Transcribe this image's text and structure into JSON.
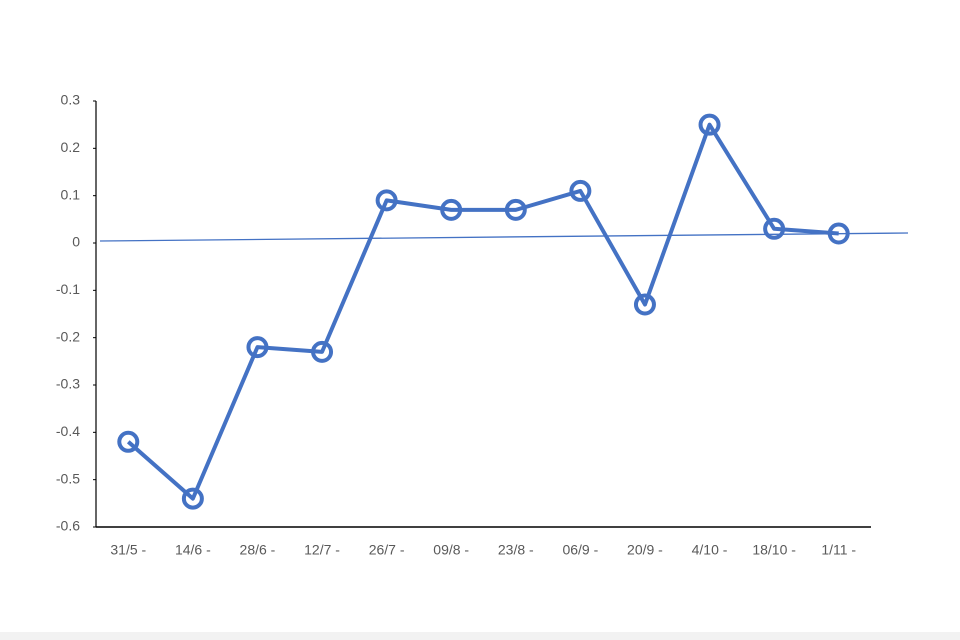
{
  "chart_data": {
    "type": "line",
    "categories": [
      "31/5 -",
      "14/6 -",
      "28/6 -",
      "12/7 -",
      "26/7 -",
      "09/8 -",
      "23/8 -",
      "06/9 -",
      "20/9 -",
      "4/10 -",
      "18/10 -",
      "1/11 -"
    ],
    "series": [
      {
        "color": "#4472c4",
        "values": [
          -0.42,
          -0.54,
          -0.22,
          -0.23,
          0.09,
          0.07,
          0.07,
          0.11,
          -0.13,
          0.25,
          0.03,
          0.02
        ]
      }
    ],
    "ylim": [
      -0.6,
      0.3
    ],
    "yticks": [
      0.3,
      0.2,
      0.1,
      0,
      -0.1,
      -0.2,
      -0.3,
      -0.4,
      -0.5,
      -0.6
    ],
    "grid": false
  }
}
